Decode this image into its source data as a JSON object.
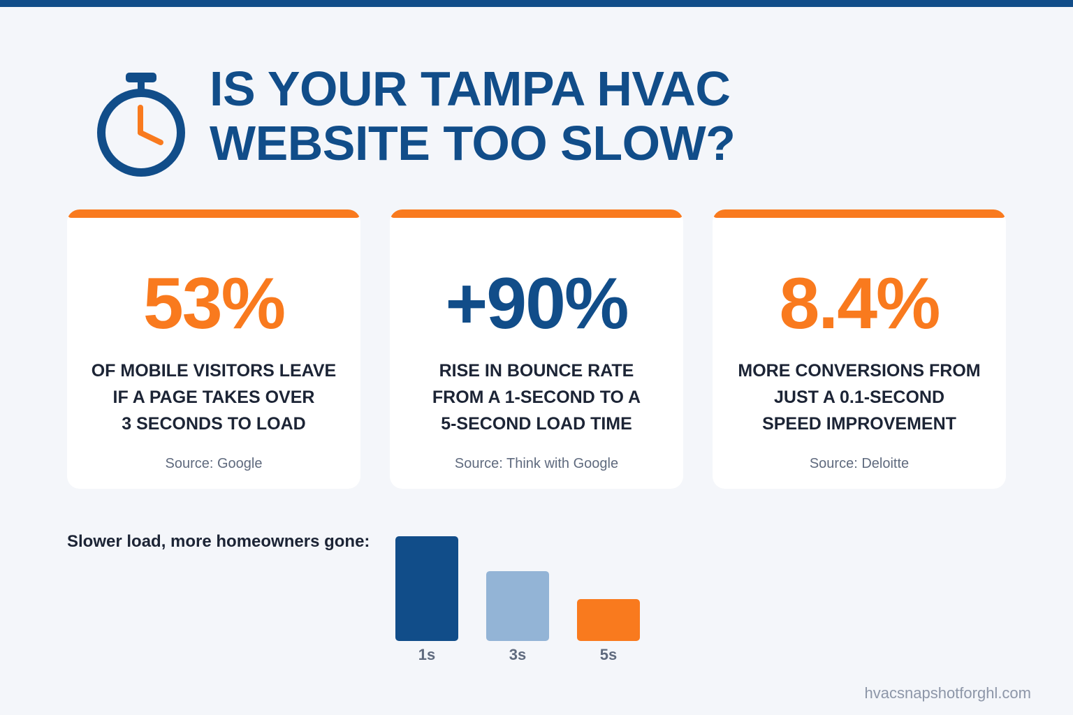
{
  "header": {
    "icon": "stopwatch-icon",
    "title_line1": "IS YOUR TAMPA HVAC",
    "title_line2": "WEBSITE TOO SLOW?"
  },
  "colors": {
    "brand_blue": "#114d89",
    "accent_orange": "#f97a1e",
    "light_blue": "#93b4d6"
  },
  "cards": [
    {
      "stat": "53%",
      "desc": [
        "OF MOBILE VISITORS LEAVE",
        "IF A PAGE TAKES OVER",
        "3 SECONDS TO LOAD"
      ],
      "source": "Source: Google"
    },
    {
      "stat": "+90%",
      "desc": [
        "RISE IN BOUNCE RATE",
        "FROM A 1-SECOND TO A",
        "5-SECOND LOAD TIME"
      ],
      "source": "Source: Think with Google"
    },
    {
      "stat": "8.4%",
      "desc": [
        "MORE CONVERSIONS FROM",
        "JUST A 0.1-SECOND",
        "SPEED IMPROVEMENT"
      ],
      "source": "Source: Deloitte"
    }
  ],
  "chart_label": "Slower load, more homeowners gone:",
  "chart_data": {
    "type": "bar",
    "categories": [
      "1s",
      "3s",
      "5s"
    ],
    "values": [
      100,
      66.7,
      40
    ],
    "colors": [
      "#114d89",
      "#93b4d6",
      "#f97a1e"
    ],
    "ylim": [
      0,
      100
    ],
    "grid": false
  },
  "footer": "hvacsnapshotforghl.com"
}
